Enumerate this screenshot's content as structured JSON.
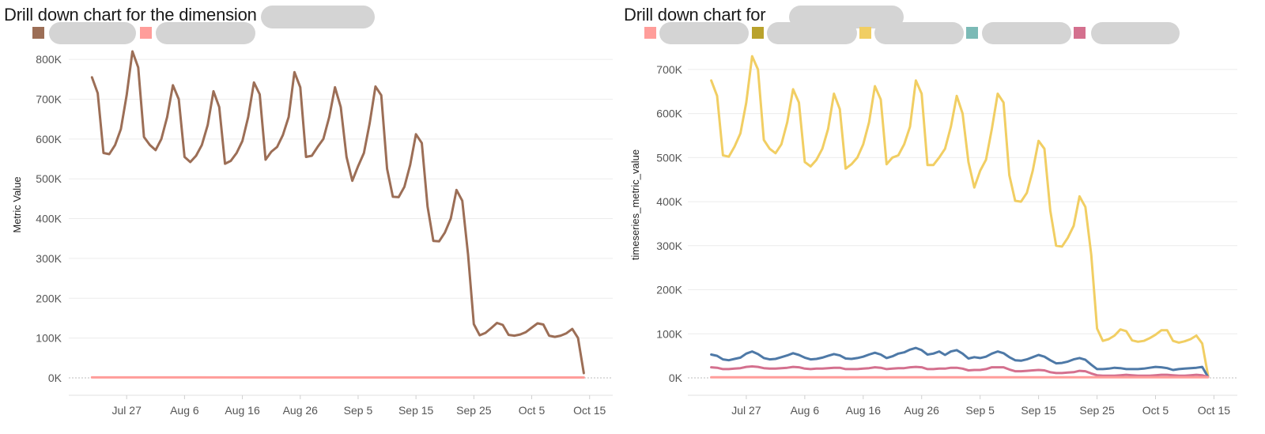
{
  "charts": [
    {
      "title": "Drill down chart for the dimension",
      "legend": [
        {
          "color": "#9c6e56"
        },
        {
          "color": "#ff9d9a"
        }
      ]
    },
    {
      "title": "Drill down chart for",
      "legend": [
        {
          "color": "#ff9d9a"
        },
        {
          "color": "#b9a22c"
        },
        {
          "color": "#f1ce63"
        },
        {
          "color": "#7bbab6"
        },
        {
          "color": "#d4708e"
        }
      ]
    }
  ],
  "chart_data": [
    {
      "type": "line",
      "title": "Drill down chart for the dimension",
      "xlabel": "",
      "ylabel": "Metric Value",
      "x_ticks": [
        "Jul 27",
        "Aug 6",
        "Aug 16",
        "Aug 26",
        "Sep 5",
        "Sep 15",
        "Sep 25",
        "Oct 5",
        "Oct 15"
      ],
      "y_ticks": [
        "0K",
        "100K",
        "200K",
        "300K",
        "400K",
        "500K",
        "600K",
        "700K",
        "800K"
      ],
      "ylim": [
        0,
        830000
      ],
      "x_range": [
        "2024-07-17",
        "2024-10-19"
      ],
      "grid": true,
      "series": [
        {
          "color": "#9c6e56",
          "x": [
            "2024-07-21",
            "2024-07-22",
            "2024-07-23",
            "2024-07-24",
            "2024-07-25",
            "2024-07-26",
            "2024-07-27",
            "2024-07-28",
            "2024-07-29",
            "2024-07-30",
            "2024-07-31",
            "2024-08-01",
            "2024-08-02",
            "2024-08-03",
            "2024-08-04",
            "2024-08-05",
            "2024-08-06",
            "2024-08-07",
            "2024-08-08",
            "2024-08-09",
            "2024-08-10",
            "2024-08-11",
            "2024-08-12",
            "2024-08-13",
            "2024-08-14",
            "2024-08-15",
            "2024-08-16",
            "2024-08-17",
            "2024-08-18",
            "2024-08-19",
            "2024-08-20",
            "2024-08-21",
            "2024-08-22",
            "2024-08-23",
            "2024-08-24",
            "2024-08-25",
            "2024-08-26",
            "2024-08-27",
            "2024-08-28",
            "2024-08-29",
            "2024-08-30",
            "2024-08-31",
            "2024-09-01",
            "2024-09-02",
            "2024-09-03",
            "2024-09-04",
            "2024-09-05",
            "2024-09-06",
            "2024-09-07",
            "2024-09-08",
            "2024-09-09",
            "2024-09-10",
            "2024-09-11",
            "2024-09-12",
            "2024-09-13",
            "2024-09-14",
            "2024-09-15",
            "2024-09-16",
            "2024-09-17",
            "2024-09-18",
            "2024-09-19",
            "2024-09-20",
            "2024-09-21",
            "2024-09-22",
            "2024-09-23",
            "2024-09-24",
            "2024-09-25",
            "2024-09-26",
            "2024-09-27",
            "2024-09-28",
            "2024-09-29",
            "2024-09-30",
            "2024-10-01",
            "2024-10-02",
            "2024-10-03",
            "2024-10-04",
            "2024-10-05",
            "2024-10-06",
            "2024-10-07",
            "2024-10-08",
            "2024-10-09",
            "2024-10-10",
            "2024-10-11",
            "2024-10-12",
            "2024-10-13",
            "2024-10-14"
          ],
          "values": [
            755000,
            715000,
            565000,
            562000,
            585000,
            625000,
            710000,
            820000,
            780000,
            605000,
            585000,
            572000,
            600000,
            655000,
            735000,
            700000,
            555000,
            542000,
            558000,
            585000,
            635000,
            720000,
            680000,
            538000,
            545000,
            565000,
            595000,
            655000,
            742000,
            712000,
            548000,
            568000,
            580000,
            610000,
            655000,
            768000,
            730000,
            555000,
            558000,
            580000,
            600000,
            655000,
            730000,
            680000,
            555000,
            495000,
            532000,
            565000,
            640000,
            732000,
            710000,
            525000,
            455000,
            454000,
            480000,
            535000,
            612000,
            590000,
            430000,
            344000,
            343000,
            365000,
            400000,
            472000,
            445000,
            310000,
            135000,
            107000,
            113000,
            125000,
            138000,
            133000,
            108000,
            106000,
            109000,
            115000,
            126000,
            137000,
            134000,
            106000,
            103000,
            106000,
            112000,
            123000,
            100000,
            12000
          ]
        },
        {
          "color": "#ff9d9a",
          "x": [
            "2024-07-21",
            "2024-10-14"
          ],
          "values": [
            1200,
            1000
          ]
        }
      ]
    },
    {
      "type": "line",
      "title": "Drill down chart for",
      "xlabel": "",
      "ylabel": "timeseries_metric_value",
      "x_ticks": [
        "Jul 27",
        "Aug 6",
        "Aug 16",
        "Aug 26",
        "Sep 5",
        "Sep 15",
        "Sep 25",
        "Oct 5",
        "Oct 15"
      ],
      "y_ticks": [
        "0K",
        "100K",
        "200K",
        "300K",
        "400K",
        "500K",
        "600K",
        "700K"
      ],
      "ylim": [
        0,
        750000
      ],
      "x_range": [
        "2024-07-17",
        "2024-10-19"
      ],
      "grid": true,
      "series": [
        {
          "color": "#f1ce63",
          "x": [
            "2024-07-21",
            "2024-07-22",
            "2024-07-23",
            "2024-07-24",
            "2024-07-25",
            "2024-07-26",
            "2024-07-27",
            "2024-07-28",
            "2024-07-29",
            "2024-07-30",
            "2024-07-31",
            "2024-08-01",
            "2024-08-02",
            "2024-08-03",
            "2024-08-04",
            "2024-08-05",
            "2024-08-06",
            "2024-08-07",
            "2024-08-08",
            "2024-08-09",
            "2024-08-10",
            "2024-08-11",
            "2024-08-12",
            "2024-08-13",
            "2024-08-14",
            "2024-08-15",
            "2024-08-16",
            "2024-08-17",
            "2024-08-18",
            "2024-08-19",
            "2024-08-20",
            "2024-08-21",
            "2024-08-22",
            "2024-08-23",
            "2024-08-24",
            "2024-08-25",
            "2024-08-26",
            "2024-08-27",
            "2024-08-28",
            "2024-08-29",
            "2024-08-30",
            "2024-08-31",
            "2024-09-01",
            "2024-09-02",
            "2024-09-03",
            "2024-09-04",
            "2024-09-05",
            "2024-09-06",
            "2024-09-07",
            "2024-09-08",
            "2024-09-09",
            "2024-09-10",
            "2024-09-11",
            "2024-09-12",
            "2024-09-13",
            "2024-09-14",
            "2024-09-15",
            "2024-09-16",
            "2024-09-17",
            "2024-09-18",
            "2024-09-19",
            "2024-09-20",
            "2024-09-21",
            "2024-09-22",
            "2024-09-23",
            "2024-09-24",
            "2024-09-25",
            "2024-09-26",
            "2024-09-27",
            "2024-09-28",
            "2024-09-29",
            "2024-09-30",
            "2024-10-01",
            "2024-10-02",
            "2024-10-03",
            "2024-10-04",
            "2024-10-05",
            "2024-10-06",
            "2024-10-07",
            "2024-10-08",
            "2024-10-09",
            "2024-10-10",
            "2024-10-11",
            "2024-10-12",
            "2024-10-13",
            "2024-10-14"
          ],
          "values": [
            675000,
            640000,
            505000,
            502000,
            525000,
            555000,
            625000,
            730000,
            700000,
            540000,
            520000,
            510000,
            530000,
            580000,
            655000,
            625000,
            490000,
            480000,
            495000,
            520000,
            565000,
            645000,
            610000,
            475000,
            485000,
            500000,
            530000,
            580000,
            662000,
            632000,
            485000,
            500000,
            505000,
            530000,
            570000,
            675000,
            645000,
            483000,
            483000,
            500000,
            520000,
            570000,
            640000,
            600000,
            490000,
            432000,
            470000,
            495000,
            565000,
            645000,
            625000,
            460000,
            402000,
            400000,
            420000,
            470000,
            538000,
            520000,
            380000,
            300000,
            298000,
            318000,
            345000,
            412000,
            388000,
            280000,
            112000,
            84000,
            88000,
            96000,
            110000,
            106000,
            85000,
            82000,
            84000,
            90000,
            98000,
            108000,
            108000,
            84000,
            80000,
            83000,
            88000,
            96000,
            78000,
            5000
          ]
        },
        {
          "color": "#4e79a7",
          "x": [
            "2024-07-21",
            "2024-07-22",
            "2024-07-23",
            "2024-07-24",
            "2024-07-25",
            "2024-07-26",
            "2024-07-27",
            "2024-07-28",
            "2024-07-29",
            "2024-07-30",
            "2024-07-31",
            "2024-08-01",
            "2024-08-02",
            "2024-08-03",
            "2024-08-04",
            "2024-08-05",
            "2024-08-06",
            "2024-08-07",
            "2024-08-08",
            "2024-08-09",
            "2024-08-10",
            "2024-08-11",
            "2024-08-12",
            "2024-08-13",
            "2024-08-14",
            "2024-08-15",
            "2024-08-16",
            "2024-08-17",
            "2024-08-18",
            "2024-08-19",
            "2024-08-20",
            "2024-08-21",
            "2024-08-22",
            "2024-08-23",
            "2024-08-24",
            "2024-08-25",
            "2024-08-26",
            "2024-08-27",
            "2024-08-28",
            "2024-08-29",
            "2024-08-30",
            "2024-08-31",
            "2024-09-01",
            "2024-09-02",
            "2024-09-03",
            "2024-09-04",
            "2024-09-05",
            "2024-09-06",
            "2024-09-07",
            "2024-09-08",
            "2024-09-09",
            "2024-09-10",
            "2024-09-11",
            "2024-09-12",
            "2024-09-13",
            "2024-09-14",
            "2024-09-15",
            "2024-09-16",
            "2024-09-17",
            "2024-09-18",
            "2024-09-19",
            "2024-09-20",
            "2024-09-21",
            "2024-09-22",
            "2024-09-23",
            "2024-09-24",
            "2024-09-25",
            "2024-09-26",
            "2024-09-27",
            "2024-09-28",
            "2024-09-29",
            "2024-09-30",
            "2024-10-01",
            "2024-10-02",
            "2024-10-03",
            "2024-10-04",
            "2024-10-05",
            "2024-10-06",
            "2024-10-07",
            "2024-10-08",
            "2024-10-09",
            "2024-10-10",
            "2024-10-11",
            "2024-10-12",
            "2024-10-13",
            "2024-10-14"
          ],
          "values": [
            53000,
            50000,
            42000,
            40000,
            43000,
            46000,
            55000,
            60000,
            54000,
            45000,
            42000,
            43000,
            47000,
            51000,
            56000,
            52000,
            46000,
            42000,
            43000,
            46000,
            50000,
            54000,
            51000,
            44000,
            43000,
            45000,
            48000,
            53000,
            57000,
            53000,
            45000,
            49000,
            55000,
            58000,
            64000,
            68000,
            63000,
            53000,
            55000,
            60000,
            52000,
            60000,
            63000,
            55000,
            44000,
            47000,
            45000,
            48000,
            55000,
            60000,
            56000,
            47000,
            40000,
            39000,
            42000,
            47000,
            52000,
            48000,
            40000,
            33000,
            34000,
            37000,
            42000,
            45000,
            41000,
            30000,
            20000,
            20000,
            21000,
            23000,
            22000,
            20000,
            20000,
            20000,
            21000,
            23000,
            25000,
            24000,
            22000,
            18000,
            20000,
            21000,
            22000,
            23000,
            25000,
            2000
          ]
        },
        {
          "color": "#d4708e",
          "x": [
            "2024-07-21",
            "2024-07-22",
            "2024-07-23",
            "2024-07-24",
            "2024-07-25",
            "2024-07-26",
            "2024-07-27",
            "2024-07-28",
            "2024-07-29",
            "2024-07-30",
            "2024-07-31",
            "2024-08-01",
            "2024-08-02",
            "2024-08-03",
            "2024-08-04",
            "2024-08-05",
            "2024-08-06",
            "2024-08-07",
            "2024-08-08",
            "2024-08-09",
            "2024-08-10",
            "2024-08-11",
            "2024-08-12",
            "2024-08-13",
            "2024-08-14",
            "2024-08-15",
            "2024-08-16",
            "2024-08-17",
            "2024-08-18",
            "2024-08-19",
            "2024-08-20",
            "2024-08-21",
            "2024-08-22",
            "2024-08-23",
            "2024-08-24",
            "2024-08-25",
            "2024-08-26",
            "2024-08-27",
            "2024-08-28",
            "2024-08-29",
            "2024-08-30",
            "2024-08-31",
            "2024-09-01",
            "2024-09-02",
            "2024-09-03",
            "2024-09-04",
            "2024-09-05",
            "2024-09-06",
            "2024-09-07",
            "2024-09-08",
            "2024-09-09",
            "2024-09-10",
            "2024-09-11",
            "2024-09-12",
            "2024-09-13",
            "2024-09-14",
            "2024-09-15",
            "2024-09-16",
            "2024-09-17",
            "2024-09-18",
            "2024-09-19",
            "2024-09-20",
            "2024-09-21",
            "2024-09-22",
            "2024-09-23",
            "2024-09-24",
            "2024-09-25",
            "2024-09-26",
            "2024-09-27",
            "2024-09-28",
            "2024-09-29",
            "2024-09-30",
            "2024-10-01",
            "2024-10-02",
            "2024-10-03",
            "2024-10-04",
            "2024-10-05",
            "2024-10-06",
            "2024-10-07",
            "2024-10-08",
            "2024-10-09",
            "2024-10-10",
            "2024-10-11",
            "2024-10-12",
            "2024-10-13",
            "2024-10-14"
          ],
          "values": [
            24000,
            23000,
            20000,
            20000,
            21000,
            22000,
            25000,
            26000,
            25000,
            22000,
            21000,
            21000,
            22000,
            23000,
            25000,
            24000,
            21000,
            20000,
            21000,
            21000,
            22000,
            23000,
            23000,
            20000,
            20000,
            20000,
            21000,
            22000,
            24000,
            23000,
            20000,
            21000,
            22000,
            22000,
            24000,
            25000,
            24000,
            20000,
            20000,
            21000,
            21000,
            23000,
            23000,
            21000,
            17000,
            18000,
            18000,
            20000,
            24000,
            24000,
            24000,
            19000,
            15000,
            15000,
            16000,
            17000,
            18000,
            17000,
            13000,
            11000,
            11000,
            12000,
            13000,
            16000,
            15000,
            10000,
            6000,
            5000,
            5000,
            5000,
            6000,
            7000,
            6000,
            5000,
            5000,
            5000,
            6000,
            7000,
            7000,
            6000,
            5000,
            5000,
            6000,
            7000,
            6000,
            2000
          ]
        },
        {
          "color": "#ff9d9a",
          "x": [
            "2024-07-21",
            "2024-10-14"
          ],
          "values": [
            1500,
            1200
          ]
        }
      ]
    }
  ]
}
